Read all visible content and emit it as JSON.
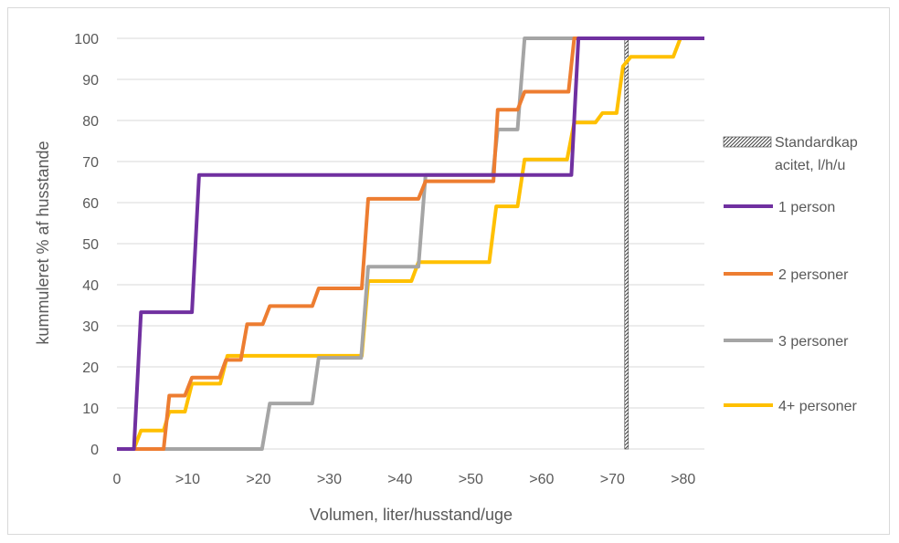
{
  "chart_data": {
    "type": "line",
    "title": "",
    "xlabel": "Volumen, liter/husstand/uge",
    "ylabel": "kummuleret % af husstande",
    "xlim": [
      0,
      83
    ],
    "ylim": [
      0,
      100
    ],
    "x_ticks": [
      "0",
      ">10",
      ">20",
      ">30",
      ">40",
      ">50",
      ">60",
      ">70",
      ">80"
    ],
    "y_ticks": [
      "0",
      "10",
      "20",
      "30",
      "40",
      "50",
      "60",
      "70",
      "80",
      "90",
      "100"
    ],
    "grid": "horizontal",
    "legend_position": "right",
    "reference_line": {
      "name": "Standardkapacitet, l/h/u",
      "label_lines": [
        "Standardkap",
        "acitet, l/h/u"
      ],
      "x": 72,
      "pattern": "hatched"
    },
    "series": [
      {
        "name": "1 person",
        "color": "#7030A0",
        "points": [
          [
            0,
            0
          ],
          [
            2.4,
            0
          ],
          [
            3.4,
            33.3
          ],
          [
            10.6,
            33.3
          ],
          [
            11.6,
            66.7
          ],
          [
            64.2,
            66.7
          ],
          [
            65.2,
            100
          ],
          [
            83,
            100
          ]
        ]
      },
      {
        "name": "2 personer",
        "color": "#ED7D31",
        "points": [
          [
            0,
            0
          ],
          [
            6.6,
            0
          ],
          [
            7.4,
            13
          ],
          [
            9.6,
            13
          ],
          [
            10.6,
            17.4
          ],
          [
            14.5,
            17.4
          ],
          [
            15.4,
            21.7
          ],
          [
            17.5,
            21.7
          ],
          [
            18.4,
            30.4
          ],
          [
            20.6,
            30.4
          ],
          [
            21.6,
            34.8
          ],
          [
            27.6,
            34.8
          ],
          [
            28.5,
            39.1
          ],
          [
            34.6,
            39.1
          ],
          [
            35.5,
            60.9
          ],
          [
            42.6,
            60.9
          ],
          [
            43.6,
            65.2
          ],
          [
            53.2,
            65.2
          ],
          [
            53.8,
            82.6
          ],
          [
            56.6,
            82.6
          ],
          [
            57.6,
            87
          ],
          [
            63.8,
            87
          ],
          [
            64.6,
            100
          ],
          [
            83,
            100
          ]
        ]
      },
      {
        "name": "3 personer",
        "color": "#A5A5A5",
        "points": [
          [
            0,
            0
          ],
          [
            20.5,
            0
          ],
          [
            21.6,
            11.1
          ],
          [
            27.6,
            11.1
          ],
          [
            28.5,
            22.2
          ],
          [
            34.5,
            22.2
          ],
          [
            35.5,
            44.4
          ],
          [
            42.6,
            44.4
          ],
          [
            43.6,
            66.7
          ],
          [
            53.1,
            66.7
          ],
          [
            53.8,
            77.8
          ],
          [
            56.6,
            77.8
          ],
          [
            57.6,
            100
          ],
          [
            83,
            100
          ]
        ]
      },
      {
        "name": "4+ personer",
        "color": "#FFC000",
        "points": [
          [
            0,
            0
          ],
          [
            2.4,
            0
          ],
          [
            3.4,
            4.5
          ],
          [
            6.6,
            4.5
          ],
          [
            7.4,
            9.1
          ],
          [
            9.6,
            9.1
          ],
          [
            10.6,
            15.9
          ],
          [
            14.6,
            15.9
          ],
          [
            15.6,
            22.7
          ],
          [
            34.6,
            22.7
          ],
          [
            35.5,
            40.9
          ],
          [
            41.6,
            40.9
          ],
          [
            42.6,
            45.5
          ],
          [
            52.6,
            45.5
          ],
          [
            53.6,
            59.1
          ],
          [
            56.6,
            59.1
          ],
          [
            57.6,
            70.5
          ],
          [
            63.6,
            70.5
          ],
          [
            64.6,
            79.5
          ],
          [
            67.6,
            79.5
          ],
          [
            68.6,
            81.8
          ],
          [
            70.6,
            81.8
          ],
          [
            71.5,
            93.2
          ],
          [
            72.6,
            95.5
          ],
          [
            78.6,
            95.5
          ],
          [
            79.6,
            100
          ],
          [
            83,
            100
          ]
        ]
      }
    ]
  }
}
